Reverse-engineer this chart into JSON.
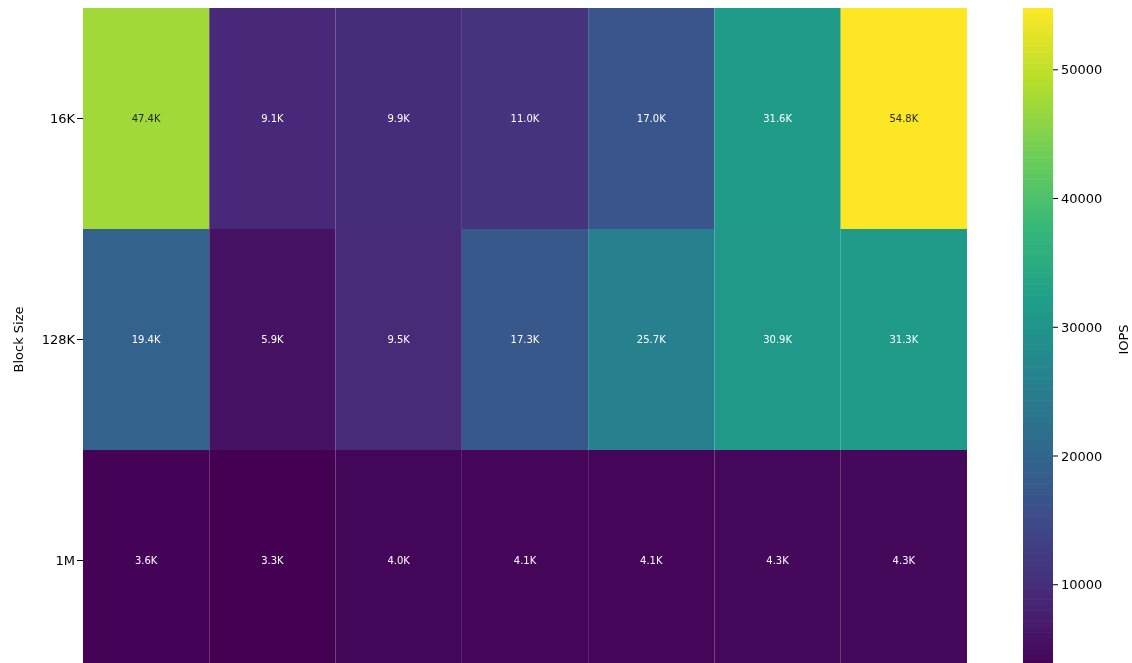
{
  "chart_data": {
    "type": "heatmap",
    "ylabel": "Block Size",
    "clabel": "IOPS",
    "categories": [
      null,
      null,
      null,
      null,
      null,
      null,
      null
    ],
    "y_categories": [
      "16K",
      "128K",
      "1M"
    ],
    "cells": [
      [
        47400,
        9100,
        9900,
        11000,
        17000,
        31600,
        54800
      ],
      [
        19400,
        5900,
        9500,
        17300,
        25700,
        30900,
        31300
      ],
      [
        3600,
        3300,
        4000,
        4100,
        4100,
        4300,
        4300
      ]
    ],
    "cell_labels": [
      [
        "47.4K",
        "9.1K",
        "9.9K",
        "11.0K",
        "17.0K",
        "31.6K",
        "54.8K"
      ],
      [
        "19.4K",
        "5.9K",
        "9.5K",
        "17.3K",
        "25.7K",
        "30.9K",
        "31.3K"
      ],
      [
        "3.6K",
        "3.3K",
        "4.0K",
        "4.1K",
        "4.1K",
        "4.3K",
        "4.3K"
      ]
    ],
    "clim": [
      3300,
      54800
    ],
    "cticks": [
      10000,
      20000,
      30000,
      40000,
      50000
    ]
  }
}
